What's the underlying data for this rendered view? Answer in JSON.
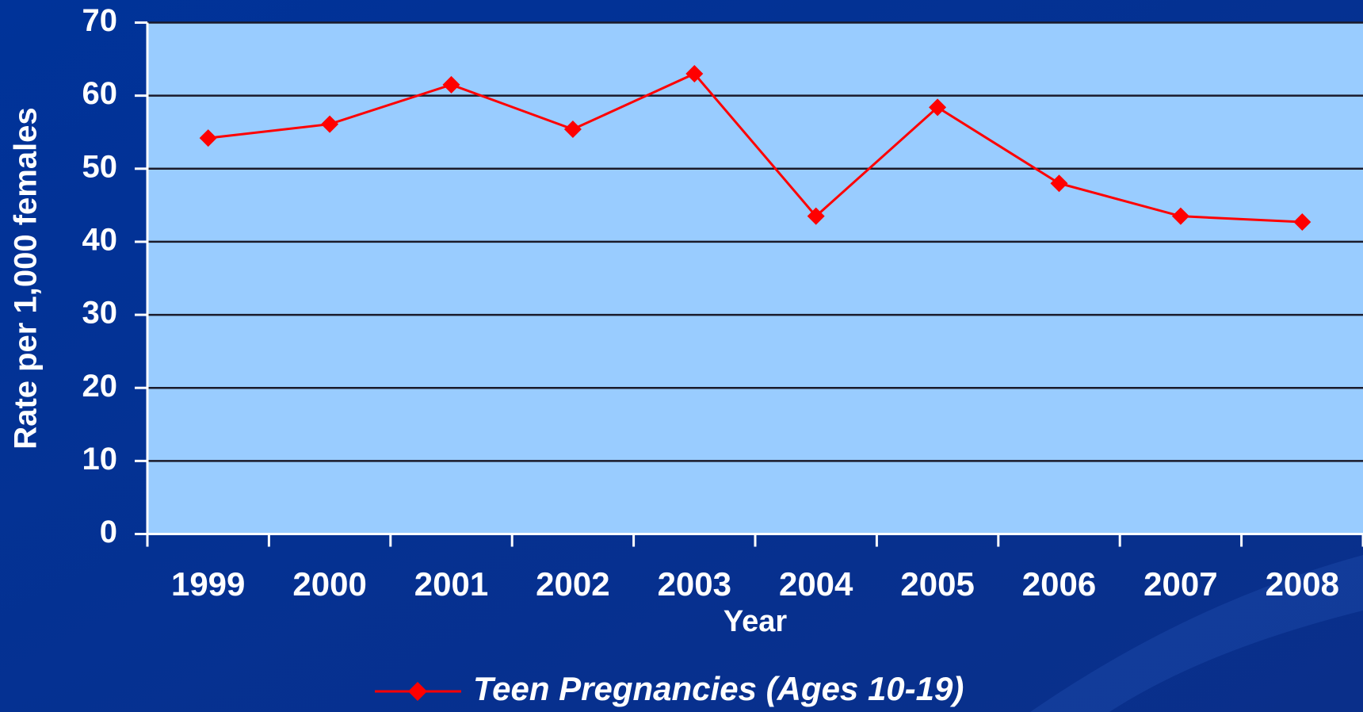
{
  "chart_data": {
    "type": "line",
    "categories": [
      "1999",
      "2000",
      "2001",
      "2002",
      "2003",
      "2004",
      "2005",
      "2006",
      "2007",
      "2008"
    ],
    "series": [
      {
        "name": "Teen Pregnancies (Ages 10-19)",
        "color": "#ff0000",
        "values": [
          54.2,
          56.1,
          61.5,
          55.4,
          63.0,
          43.5,
          58.4,
          48.0,
          43.5,
          42.7
        ]
      }
    ],
    "xlabel": "Year",
    "ylabel": "Rate per 1,000 females",
    "ylim": [
      0,
      70
    ],
    "yticks": [
      0,
      10,
      20,
      30,
      40,
      50,
      60,
      70
    ],
    "grid": true,
    "legend": "bottom"
  }
}
